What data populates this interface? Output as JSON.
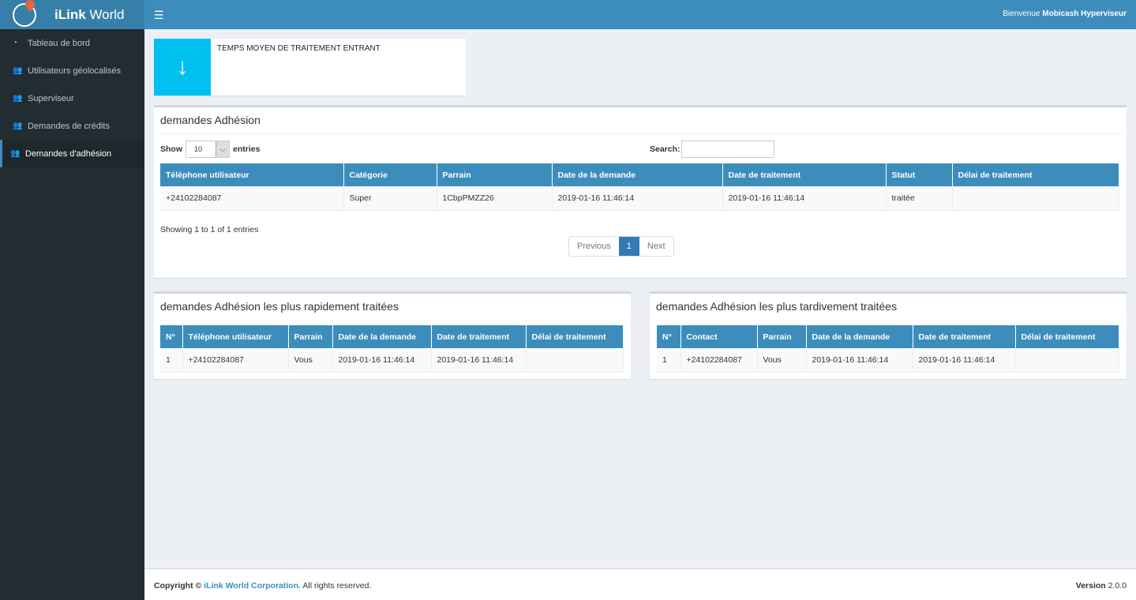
{
  "header": {
    "brand_bold": "iLink",
    "brand_rest": " World",
    "welcome_prefix": "Bienvenue ",
    "user": "Mobicash Hyperviseur"
  },
  "sidebar": {
    "items": [
      {
        "label": "Tableau de bord",
        "icon": "dashboard-icon"
      },
      {
        "label": "Utilisateurs géolocalisés",
        "icon": "users-icon"
      },
      {
        "label": "Superviseur",
        "icon": "users-icon"
      },
      {
        "label": "Demandes de crédits",
        "icon": "users-icon"
      },
      {
        "label": "Demandes d'adhésion",
        "icon": "users-icon",
        "active": true
      }
    ]
  },
  "infobox": {
    "label": "TEMPS MOYEN DE TRAITEMENT ENTRANT",
    "icon": "arrow-down-icon",
    "color": "#00c0ef"
  },
  "main_box": {
    "title": "demandes Adhésion",
    "show": "Show",
    "length": "10",
    "entries": "entries",
    "search_label": "Search:",
    "search_value": "",
    "columns": [
      "Téléphone utilisateur",
      "Catégorie",
      "Parrain",
      "Date de la demande",
      "Date de traitement",
      "Statut",
      "Délai de traitement"
    ],
    "rows": [
      [
        "+24102284087",
        "Super",
        "1CbpPMZZ26",
        "2019-01-16 11:46:14",
        "2019-01-16 11:46:14",
        "traitée",
        ""
      ]
    ],
    "info": "Showing 1 to 1 of 1 entries",
    "prev": "Previous",
    "page": "1",
    "next": "Next"
  },
  "fast_box": {
    "title": "demandes Adhésion les plus rapidement traitées",
    "columns": [
      "N°",
      "Téléphone utilisateur",
      "Parrain",
      "Date de la demande",
      "Date de traitement",
      "Délai de traitement"
    ],
    "rows": [
      [
        "1",
        "+24102284087",
        "Vous",
        "2019-01-16 11:46:14",
        "2019-01-16 11:46:14",
        ""
      ]
    ]
  },
  "slow_box": {
    "title": "demandes Adhésion les plus tardivement traitées",
    "columns": [
      "N°",
      "Contact",
      "Parrain",
      "Date de la demande",
      "Date de traitement",
      "Délai de traitement"
    ],
    "rows": [
      [
        "1",
        "+24102284087",
        "Vous",
        "2019-01-16 11:46:14",
        "2019-01-16 11:46:14",
        ""
      ]
    ]
  },
  "footer": {
    "copyright": "Copyright © ",
    "company": "iLink World Corporation.",
    "rights": " All rights reserved.",
    "version_label": "Version",
    "version": " 2.0.0"
  },
  "colors": {
    "header": "#3c8dbc",
    "sidebar": "#222d32",
    "accent": "#00c0ef"
  }
}
